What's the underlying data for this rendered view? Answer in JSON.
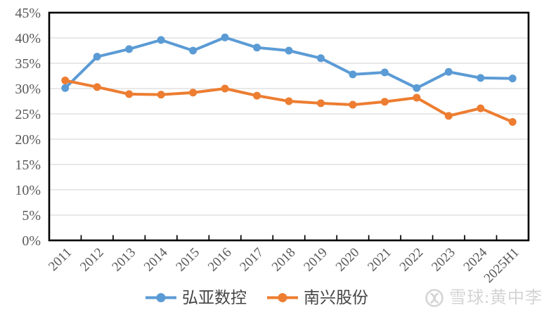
{
  "chart_data": {
    "type": "line",
    "categories": [
      "2011",
      "2012",
      "2013",
      "2014",
      "2015",
      "2016",
      "2017",
      "2018",
      "2019",
      "2020",
      "2021",
      "2022",
      "2023",
      "2024",
      "2025H1"
    ],
    "series": [
      {
        "name": "弘亚数控",
        "slug": "hongya-cnc",
        "color": "#5B9BD5",
        "values": [
          30.1,
          36.3,
          37.8,
          39.6,
          37.5,
          40.1,
          38.1,
          37.5,
          36.0,
          32.8,
          33.2,
          30.1,
          33.3,
          32.1,
          32.0
        ]
      },
      {
        "name": "南兴股份",
        "slug": "nanxing-shares",
        "color": "#ED7D31",
        "values": [
          31.6,
          30.3,
          28.9,
          28.8,
          29.2,
          30.0,
          28.6,
          27.5,
          27.1,
          26.8,
          27.4,
          28.2,
          24.6,
          26.1,
          23.4
        ]
      }
    ],
    "ylim": [
      0,
      45
    ],
    "yticks": [
      0,
      5,
      10,
      15,
      20,
      25,
      30,
      35,
      40,
      45
    ],
    "ytick_labels": [
      "0%",
      "5%",
      "10%",
      "15%",
      "20%",
      "25%",
      "30%",
      "35%",
      "40%",
      "45%"
    ],
    "grid": true,
    "legend_position": "bottom",
    "axis_color": "#000000",
    "grid_color": "#D9D9D9",
    "tick_label_color": "#595959",
    "legend_text_color": "#454545"
  },
  "watermark": {
    "text": "雪球:黄中李",
    "color": "#D4D4D4",
    "icon": "xueqiu-logo-icon"
  }
}
